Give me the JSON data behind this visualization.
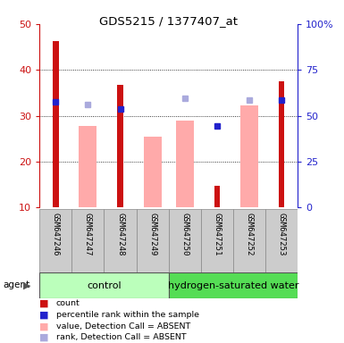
{
  "title": "GDS5215 / 1377407_at",
  "samples": [
    "GSM647246",
    "GSM647247",
    "GSM647248",
    "GSM647249",
    "GSM647250",
    "GSM647251",
    "GSM647252",
    "GSM647253"
  ],
  "count_values": [
    46.2,
    null,
    36.7,
    null,
    null,
    14.8,
    null,
    37.5
  ],
  "rank_values": [
    33.0,
    null,
    31.5,
    null,
    null,
    27.8,
    null,
    33.5
  ],
  "absent_value_values": [
    null,
    27.8,
    null,
    25.5,
    29.0,
    null,
    32.2,
    null
  ],
  "absent_rank_values": [
    null,
    32.5,
    null,
    null,
    33.8,
    null,
    33.5,
    null
  ],
  "ylim": [
    10,
    50
  ],
  "y2lim": [
    0,
    100
  ],
  "yticks": [
    10,
    20,
    30,
    40,
    50
  ],
  "y2ticks": [
    0,
    25,
    50,
    75,
    100
  ],
  "y2ticklabels": [
    "0",
    "25",
    "50",
    "75",
    "100%"
  ],
  "grid_lines": [
    20,
    30,
    40
  ],
  "count_color": "#cc1111",
  "rank_color": "#2222cc",
  "absent_value_color": "#ffaaaa",
  "absent_rank_color": "#aaaadd",
  "control_bg": "#bbffbb",
  "hw_bg": "#55dd55",
  "sample_bg": "#cccccc",
  "group_label_control": "control",
  "group_label_hw": "hydrogen-saturated water",
  "n_control": 4,
  "legend_items": [
    [
      "#cc1111",
      "count"
    ],
    [
      "#2222cc",
      "percentile rank within the sample"
    ],
    [
      "#ffaaaa",
      "value, Detection Call = ABSENT"
    ],
    [
      "#aaaadd",
      "rank, Detection Call = ABSENT"
    ]
  ]
}
